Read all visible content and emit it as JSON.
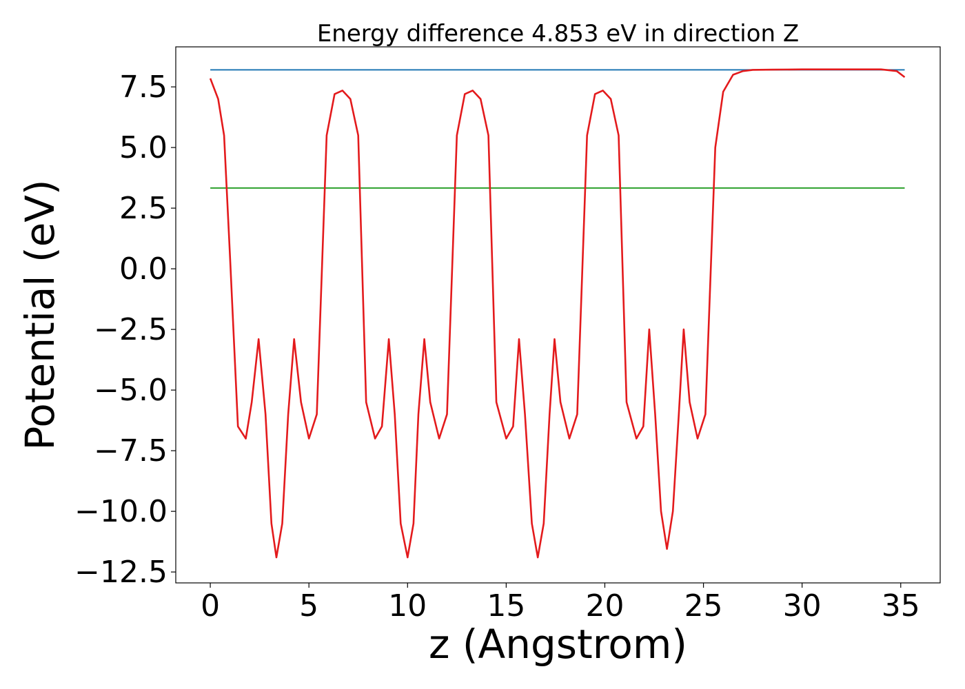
{
  "chart_data": {
    "type": "line",
    "title": "Energy difference 4.853 eV in direction Z",
    "xlabel": "z (Angstrom)",
    "ylabel": "Potential (eV)",
    "xlim": [
      -1.75,
      37.0
    ],
    "ylim": [
      -12.95,
      9.15
    ],
    "xticks": [
      0,
      5,
      10,
      15,
      20,
      25,
      30,
      35
    ],
    "xtick_labels": [
      "0",
      "5",
      "10",
      "15",
      "20",
      "25",
      "30",
      "35"
    ],
    "yticks": [
      7.5,
      5.0,
      2.5,
      0.0,
      -2.5,
      -5.0,
      -7.5,
      -10.0,
      -12.5
    ],
    "ytick_labels": [
      "7.5",
      "5.0",
      "2.5",
      "0.0",
      "−2.5",
      "−5.0",
      "−7.5",
      "−10.0",
      "−12.5"
    ],
    "grid": false,
    "legend": "none",
    "series": [
      {
        "color": "#1f77b4",
        "x": [
          0,
          35.2
        ],
        "y": [
          8.2,
          8.2
        ]
      },
      {
        "color": "#2ca02c",
        "x": [
          0,
          35.2
        ],
        "y": [
          3.33,
          3.33
        ]
      },
      {
        "color": "#e31a1c",
        "x": [
          0,
          0.4,
          0.7,
          1.0,
          1.4,
          1.8,
          2.1,
          2.45,
          2.8,
          3.1,
          3.35,
          3.65,
          3.95,
          4.25,
          4.6,
          5.0,
          5.4,
          5.9,
          6.3,
          6.7,
          7.1,
          7.5,
          7.9,
          8.35,
          8.7,
          9.05,
          9.35,
          9.65,
          10.0,
          10.3,
          10.55,
          10.85,
          11.15,
          11.6,
          12.0,
          12.5,
          12.9,
          13.3,
          13.7,
          14.1,
          14.5,
          15.0,
          15.35,
          15.65,
          15.95,
          16.3,
          16.6,
          16.9,
          17.2,
          17.45,
          17.75,
          18.2,
          18.6,
          19.1,
          19.5,
          19.9,
          20.3,
          20.7,
          21.1,
          21.6,
          21.95,
          22.25,
          22.55,
          22.85,
          23.15,
          23.45,
          23.75,
          24.0,
          24.3,
          24.7,
          25.1,
          25.6,
          26.0,
          26.5,
          27.0,
          27.5,
          28.5,
          30.0,
          32.0,
          34.0,
          34.8,
          35.2
        ],
        "y": [
          7.85,
          7.0,
          5.5,
          0.5,
          -6.5,
          -7.0,
          -5.5,
          -2.9,
          -6.0,
          -10.5,
          -11.9,
          -10.5,
          -6.0,
          -2.9,
          -5.5,
          -7.0,
          -6.0,
          5.5,
          7.2,
          7.35,
          7.0,
          5.5,
          -5.5,
          -7.0,
          -6.5,
          -2.9,
          -6.0,
          -10.5,
          -11.9,
          -10.5,
          -6.0,
          -2.9,
          -5.5,
          -7.0,
          -6.0,
          5.5,
          7.2,
          7.35,
          7.0,
          5.5,
          -5.5,
          -7.0,
          -6.5,
          -2.9,
          -6.0,
          -10.5,
          -11.9,
          -10.5,
          -6.0,
          -2.9,
          -5.5,
          -7.0,
          -6.0,
          5.5,
          7.2,
          7.35,
          7.0,
          5.5,
          -5.5,
          -7.0,
          -6.5,
          -2.5,
          -6.0,
          -10.0,
          -11.55,
          -10.0,
          -6.0,
          -2.5,
          -5.5,
          -7.0,
          -6.0,
          5.0,
          7.3,
          8.0,
          8.15,
          8.2,
          8.21,
          8.22,
          8.22,
          8.22,
          8.15,
          7.9
        ]
      }
    ]
  }
}
